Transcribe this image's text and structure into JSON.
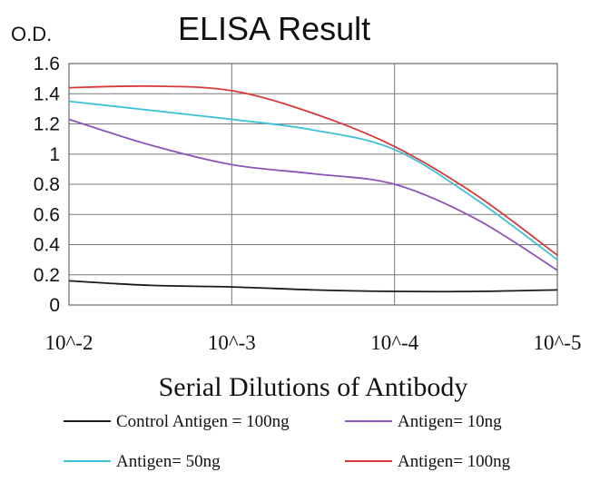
{
  "chart_data": {
    "type": "line",
    "title": "ELISA Result",
    "ylabel": "O.D.",
    "xlabel": "Serial Dilutions of Antibody",
    "x_tick_labels": [
      "10^-2",
      "10^-3",
      "10^-4",
      "10^-5"
    ],
    "x_scale": "log",
    "x": [
      0.01,
      0.001,
      0.0001,
      1e-05
    ],
    "xlim": [
      0.01,
      1e-05
    ],
    "ylim": [
      0,
      1.6
    ],
    "y_ticks": [
      0,
      0.2,
      0.4,
      0.6,
      0.8,
      1,
      1.2,
      1.4,
      1.6
    ],
    "grid": true,
    "legend_position": "bottom",
    "series": [
      {
        "name": "Control Antigen = 100ng",
        "color": "#1a1a1a",
        "points": [
          [
            0.01,
            0.16
          ],
          [
            0.00316,
            0.13
          ],
          [
            0.001,
            0.12
          ],
          [
            0.000316,
            0.1
          ],
          [
            0.0001,
            0.09
          ],
          [
            3.16e-05,
            0.09
          ],
          [
            1e-05,
            0.1
          ]
        ]
      },
      {
        "name": "Antigen= 10ng",
        "color": "#8a55b8",
        "points": [
          [
            0.01,
            1.23
          ],
          [
            0.00316,
            1.06
          ],
          [
            0.001,
            0.93
          ],
          [
            0.000316,
            0.87
          ],
          [
            0.0001,
            0.8
          ],
          [
            3.16e-05,
            0.57
          ],
          [
            1e-05,
            0.23
          ]
        ]
      },
      {
        "name": "Antigen= 50ng",
        "color": "#3cc0d8",
        "points": [
          [
            0.01,
            1.35
          ],
          [
            0.00316,
            1.29
          ],
          [
            0.001,
            1.23
          ],
          [
            0.000316,
            1.16
          ],
          [
            0.0001,
            1.03
          ],
          [
            3.16e-05,
            0.7
          ],
          [
            1e-05,
            0.3
          ]
        ]
      },
      {
        "name": "Antigen= 100ng",
        "color": "#d83838",
        "points": [
          [
            0.01,
            1.44
          ],
          [
            0.00316,
            1.45
          ],
          [
            0.001,
            1.42
          ],
          [
            0.000316,
            1.27
          ],
          [
            0.0001,
            1.05
          ],
          [
            3.16e-05,
            0.73
          ],
          [
            1e-05,
            0.33
          ]
        ]
      }
    ]
  }
}
